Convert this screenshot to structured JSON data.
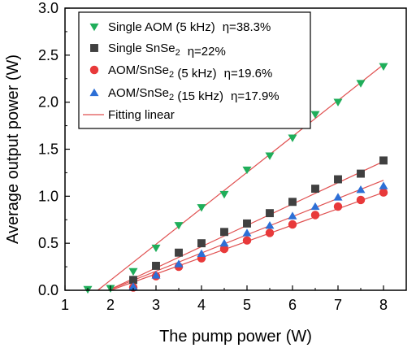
{
  "chart_data": {
    "type": "scatter",
    "xlabel": "The pump power (W)",
    "ylabel": "Average output power (W)",
    "xlim": [
      1,
      8.5
    ],
    "ylim": [
      0,
      3.0
    ],
    "xticks": [
      "1",
      "2",
      "3",
      "4",
      "5",
      "6",
      "7",
      "8"
    ],
    "yticks": [
      "0.0",
      "0.5",
      "1.0",
      "1.5",
      "2.0",
      "2.5",
      "3.0"
    ],
    "grid": false,
    "legend_position": "top-left",
    "series": [
      {
        "name": "Single AOM (5 kHz)",
        "eta": "η=38.3%",
        "marker": "triangle-down",
        "color": "#1fae5a",
        "x": [
          1.5,
          2.0,
          2.5,
          3.0,
          3.5,
          4.0,
          4.5,
          5.0,
          5.5,
          6.0,
          6.5,
          7.0,
          7.5,
          8.0
        ],
        "y": [
          0.01,
          0.02,
          0.2,
          0.45,
          0.69,
          0.88,
          1.02,
          1.28,
          1.43,
          1.62,
          1.87,
          2.0,
          2.2,
          2.38
        ],
        "fit": [
          [
            1.72,
            0.0
          ],
          [
            8.0,
            2.4
          ]
        ]
      },
      {
        "name": "Single SnSe",
        "name_sub": "2",
        "eta": "η=22%",
        "marker": "square",
        "color": "#404040",
        "x": [
          2.5,
          3.0,
          3.5,
          4.0,
          4.5,
          5.0,
          5.5,
          6.0,
          6.5,
          7.0,
          7.5,
          8.0
        ],
        "y": [
          0.11,
          0.26,
          0.4,
          0.5,
          0.62,
          0.71,
          0.82,
          0.94,
          1.08,
          1.18,
          1.24,
          1.38
        ],
        "fit": [
          [
            1.95,
            0.0
          ],
          [
            8.0,
            1.37
          ]
        ]
      },
      {
        "name": "AOM/SnSe",
        "name_sub": "2",
        "name_suffix": " (5 kHz)",
        "eta": "η=19.6%",
        "marker": "circle",
        "color": "#e8393a",
        "x": [
          2.5,
          3.0,
          3.5,
          4.0,
          4.5,
          5.0,
          5.5,
          6.0,
          6.5,
          7.0,
          7.5,
          8.0
        ],
        "y": [
          0.03,
          0.15,
          0.25,
          0.34,
          0.44,
          0.53,
          0.61,
          0.7,
          0.8,
          0.89,
          0.96,
          1.04
        ],
        "fit": [
          [
            2.0,
            0.0
          ],
          [
            8.0,
            1.04
          ]
        ]
      },
      {
        "name": "AOM/SnSe",
        "name_sub": "2",
        "name_suffix": " (15 kHz)",
        "eta": "η=17.9%",
        "marker": "triangle-up",
        "color": "#2d6fd6",
        "x": [
          2.5,
          3.0,
          3.5,
          4.0,
          4.5,
          5.0,
          5.5,
          6.0,
          6.5,
          7.0,
          7.5,
          8.0
        ],
        "y": [
          0.04,
          0.16,
          0.28,
          0.39,
          0.5,
          0.61,
          0.69,
          0.79,
          0.89,
          0.99,
          1.07,
          1.11
        ],
        "fit": [
          [
            1.95,
            0.0
          ],
          [
            8.0,
            1.17
          ]
        ]
      }
    ],
    "fit_legend": {
      "name": "Fitting linear",
      "color": "#e05050"
    }
  }
}
